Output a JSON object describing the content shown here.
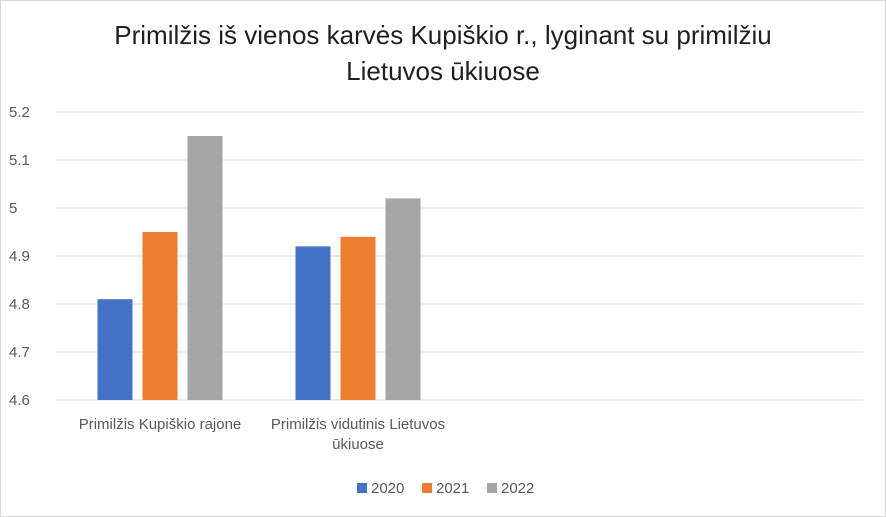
{
  "chart_data": {
    "type": "bar",
    "title_lines": [
      "Primilžis iš vienos karvės Kupiškio r.,  lyginant su primilžiu",
      "Lietuvos ūkiuose"
    ],
    "categories": [
      [
        "Primilžis Kupiškio rajone"
      ],
      [
        "Primilžis vidutinis Lietuvos",
        "ūkiuose"
      ]
    ],
    "series": [
      {
        "name": "2020",
        "color": "#4472c4",
        "values": [
          4.81,
          4.92
        ]
      },
      {
        "name": "2021",
        "color": "#ed7d31",
        "values": [
          4.95,
          4.94
        ]
      },
      {
        "name": "2022",
        "color": "#a5a5a5",
        "values": [
          5.15,
          5.02
        ]
      }
    ],
    "ylim": [
      4.6,
      5.2
    ],
    "yticks": [
      "4.6",
      "4.7",
      "4.8",
      "4.9",
      "5",
      "5.1",
      "5.2"
    ],
    "grid": true,
    "legend_position": "bottom"
  }
}
